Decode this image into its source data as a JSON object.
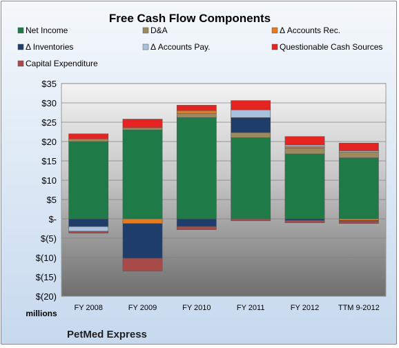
{
  "chart_data": {
    "type": "bar",
    "stacked": true,
    "title": "Free Cash Flow Components",
    "company": "PetMed Express",
    "units_label": "millions",
    "categories": [
      "FY 2008",
      "FY 2009",
      "FY 2010",
      "FY 2011",
      "FY 2012",
      "TTM 9-2012"
    ],
    "ylim": [
      -20,
      35
    ],
    "yticks": [
      35,
      30,
      25,
      20,
      15,
      10,
      5,
      0,
      -5,
      -10,
      -15,
      -20
    ],
    "ytick_labels": [
      "$35",
      "$30",
      "$25",
      "$20",
      "$15",
      "$10",
      "$5",
      "$-",
      "$(5)",
      "$(10)",
      "$(15)",
      "$(20)"
    ],
    "grid": true,
    "legend_position": "top",
    "series": [
      {
        "name": "Net Income",
        "color": "#1e7a46",
        "values": [
          20.0,
          23.0,
          26.2,
          21.0,
          16.8,
          15.8
        ]
      },
      {
        "name": "D&A",
        "color": "#9c8a5c",
        "values": [
          0.7,
          0.6,
          1.0,
          1.3,
          1.5,
          1.5
        ]
      },
      {
        "name": "Δ Accounts Rec.",
        "color": "#e87a1e",
        "values": [
          0.0,
          -1.2,
          0.8,
          0.0,
          0.4,
          -0.4
        ]
      },
      {
        "name": "Δ Inventories",
        "color": "#1f3d6b",
        "values": [
          -2.0,
          -9.0,
          -2.0,
          3.9,
          -0.4,
          -0.2
        ]
      },
      {
        "name": "Δ Accounts Pay.",
        "color": "#a9c1e0",
        "values": [
          -1.2,
          0.0,
          0.0,
          2.0,
          0.4,
          0.3
        ]
      },
      {
        "name": "Questionable Cash Sources",
        "color": "#e52421",
        "values": [
          1.3,
          2.2,
          1.4,
          2.4,
          2.2,
          2.0
        ]
      },
      {
        "name": "Capital Expenditure",
        "color": "#a94a4a",
        "values": [
          -0.5,
          -3.3,
          -0.8,
          -0.5,
          -0.6,
          -0.6
        ]
      }
    ]
  }
}
